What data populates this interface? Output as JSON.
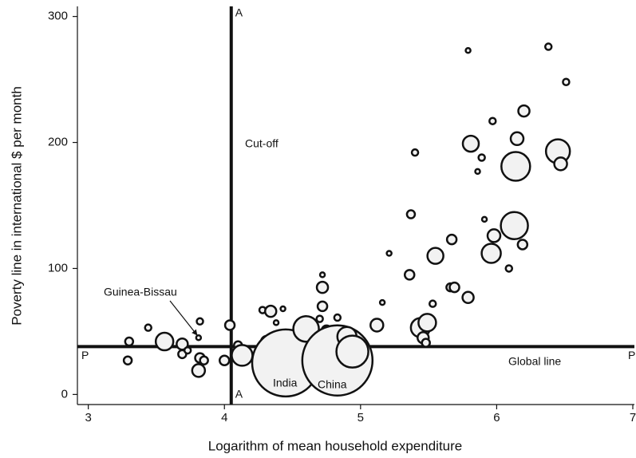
{
  "chart_data": {
    "type": "scatter",
    "x_label": "Logarithm of mean household expenditure",
    "y_label": "Poverty line in international $ per month",
    "xlim": [
      2.92,
      7.0
    ],
    "ylim": [
      -8,
      308
    ],
    "xticks": [
      3,
      4,
      5,
      6,
      7
    ],
    "yticks": [
      0,
      100,
      200,
      300
    ],
    "vline": {
      "x": 4.05,
      "label": "A"
    },
    "hline": {
      "y": 38,
      "label": "P"
    },
    "annotations": [
      "Cut-off",
      "Global line",
      "Guinea-Bissau",
      "India",
      "China"
    ],
    "color": "#f2f2f2",
    "edge_color": "#111111",
    "x": [
      3.29,
      3.3,
      3.44,
      3.56,
      3.69,
      3.69,
      3.73,
      3.81,
      3.82,
      3.82,
      3.85,
      3.81,
      4.0,
      4.04,
      4.1,
      4.13,
      4.31,
      4.28,
      4.34,
      4.38,
      4.37,
      4.4,
      4.45,
      4.43,
      4.6,
      4.72,
      4.72,
      4.72,
      4.7,
      4.75,
      4.83,
      4.83,
      4.9,
      4.94,
      5.12,
      5.16,
      5.21,
      5.36,
      5.37,
      5.4,
      5.44,
      5.46,
      5.49,
      5.48,
      5.53,
      5.55,
      5.66,
      5.69,
      5.67,
      5.79,
      5.79,
      5.81,
      5.86,
      5.89,
      5.97,
      5.91,
      5.98,
      5.96,
      6.09,
      6.13,
      6.14,
      6.15,
      6.2,
      6.19,
      6.38,
      6.45,
      6.47,
      6.51
    ],
    "values": [
      27,
      42,
      53,
      42,
      40,
      32,
      35,
      45,
      58,
      29,
      27,
      19,
      27,
      55,
      39,
      31,
      42,
      67,
      66,
      57,
      19,
      34,
      25,
      68,
      52,
      95,
      85,
      70,
      60,
      51,
      61,
      27,
      46,
      34,
      55,
      73,
      112,
      95,
      143,
      192,
      53,
      45,
      57,
      41,
      72,
      110,
      85,
      85,
      123,
      77,
      273,
      199,
      177,
      188,
      217,
      139,
      126,
      112,
      100,
      134,
      181,
      203,
      225,
      119,
      276,
      193,
      183,
      248
    ],
    "sizes": [
      25,
      25,
      16,
      121,
      49,
      25,
      16,
      9,
      16,
      36,
      25,
      64,
      36,
      36,
      25,
      169,
      49,
      16,
      49,
      9,
      25,
      144,
      1764,
      9,
      256,
      9,
      49,
      36,
      16,
      36,
      16,
      1936,
      144,
      400,
      64,
      9,
      9,
      36,
      25,
      16,
      144,
      49,
      121,
      25,
      16,
      100,
      25,
      36,
      36,
      49,
      9,
      100,
      9,
      16,
      16,
      9,
      64,
      144,
      16,
      289,
      324,
      64,
      49,
      36,
      16,
      225,
      64,
      16
    ]
  }
}
